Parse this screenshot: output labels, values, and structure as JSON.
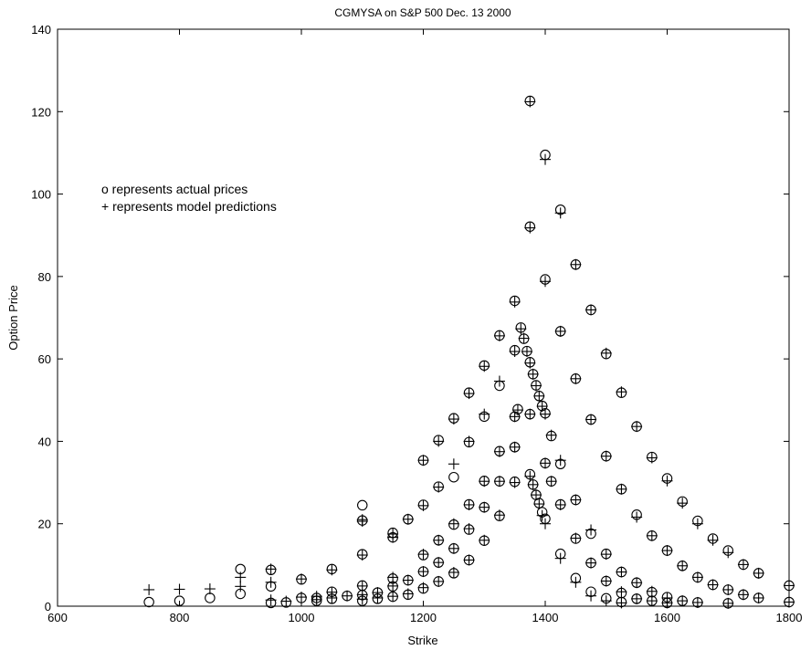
{
  "chart_data": {
    "type": "scatter",
    "title": "CGMYSA on S&P 500 Dec. 13 2000",
    "xlabel": "Strike",
    "ylabel": "Option Price",
    "xlim": [
      600,
      1800
    ],
    "ylim": [
      0,
      140
    ],
    "xticks": [
      600,
      800,
      1000,
      1200,
      1400,
      1600,
      1800
    ],
    "yticks": [
      0,
      20,
      40,
      60,
      80,
      100,
      120,
      140
    ],
    "grid": false,
    "legend": {
      "placement": "upper-left",
      "lines": [
        "o represents actual prices",
        "+ represents model predictions"
      ]
    },
    "series": [
      {
        "name": "actual prices",
        "marker": "o",
        "points": [
          [
            750,
            1.0
          ],
          [
            800,
            1.3
          ],
          [
            850,
            2.0
          ],
          [
            900,
            9.0
          ],
          [
            900,
            3.0
          ],
          [
            950,
            8.8
          ],
          [
            950,
            4.8
          ],
          [
            950,
            0.8
          ],
          [
            975,
            0.9
          ],
          [
            1000,
            6.5
          ],
          [
            1000,
            2.0
          ],
          [
            1025,
            2.0
          ],
          [
            1025,
            1.3
          ],
          [
            1050,
            9.0
          ],
          [
            1050,
            3.5
          ],
          [
            1050,
            1.8
          ],
          [
            1075,
            2.5
          ],
          [
            1100,
            24.5
          ],
          [
            1100,
            20.8
          ],
          [
            1100,
            12.6
          ],
          [
            1100,
            5.0
          ],
          [
            1100,
            2.7
          ],
          [
            1100,
            1.3
          ],
          [
            1125,
            3.3
          ],
          [
            1125,
            1.8
          ],
          [
            1150,
            17.8
          ],
          [
            1150,
            16.7
          ],
          [
            1150,
            6.7
          ],
          [
            1150,
            4.8
          ],
          [
            1150,
            2.3
          ],
          [
            1175,
            21.1
          ],
          [
            1175,
            6.3
          ],
          [
            1175,
            2.8
          ],
          [
            1200,
            35.4
          ],
          [
            1200,
            24.6
          ],
          [
            1200,
            12.4
          ],
          [
            1200,
            8.4
          ],
          [
            1200,
            4.3
          ],
          [
            1225,
            40.3
          ],
          [
            1225,
            29.0
          ],
          [
            1225,
            16.0
          ],
          [
            1225,
            10.6
          ],
          [
            1225,
            6.0
          ],
          [
            1250,
            45.6
          ],
          [
            1250,
            31.3
          ],
          [
            1250,
            19.8
          ],
          [
            1250,
            14.0
          ],
          [
            1250,
            8.0
          ],
          [
            1275,
            51.8
          ],
          [
            1275,
            39.8
          ],
          [
            1275,
            24.7
          ],
          [
            1275,
            18.6
          ],
          [
            1275,
            11.2
          ],
          [
            1300,
            58.4
          ],
          [
            1300,
            46.0
          ],
          [
            1300,
            30.4
          ],
          [
            1300,
            24.0
          ],
          [
            1300,
            15.9
          ],
          [
            1325,
            65.7
          ],
          [
            1325,
            53.5
          ],
          [
            1325,
            37.6
          ],
          [
            1325,
            30.3
          ],
          [
            1325,
            21.9
          ],
          [
            1350,
            74.1
          ],
          [
            1350,
            62.1
          ],
          [
            1350,
            46.0
          ],
          [
            1350,
            38.6
          ],
          [
            1350,
            30.2
          ],
          [
            1355,
            47.8
          ],
          [
            1360,
            67.6
          ],
          [
            1365,
            64.9
          ],
          [
            1370,
            61.9
          ],
          [
            1375,
            122.6
          ],
          [
            1375,
            92.1
          ],
          [
            1375,
            59.2
          ],
          [
            1375,
            46.6
          ],
          [
            1375,
            32.0
          ],
          [
            1380,
            56.3
          ],
          [
            1380,
            29.5
          ],
          [
            1385,
            53.6
          ],
          [
            1385,
            27.0
          ],
          [
            1390,
            51.0
          ],
          [
            1390,
            25.0
          ],
          [
            1395,
            48.6
          ],
          [
            1395,
            22.8
          ],
          [
            1400,
            109.5
          ],
          [
            1400,
            79.3
          ],
          [
            1400,
            46.8
          ],
          [
            1400,
            34.7
          ],
          [
            1400,
            21.2
          ],
          [
            1410,
            41.3
          ],
          [
            1410,
            30.3
          ],
          [
            1425,
            96.2
          ],
          [
            1425,
            66.7
          ],
          [
            1425,
            34.5
          ],
          [
            1425,
            24.7
          ],
          [
            1425,
            12.7
          ],
          [
            1450,
            82.9
          ],
          [
            1450,
            55.2
          ],
          [
            1450,
            25.8
          ],
          [
            1450,
            16.4
          ],
          [
            1450,
            6.8
          ],
          [
            1475,
            71.9
          ],
          [
            1475,
            45.3
          ],
          [
            1475,
            17.6
          ],
          [
            1475,
            10.5
          ],
          [
            1475,
            3.5
          ],
          [
            1500,
            61.2
          ],
          [
            1500,
            36.4
          ],
          [
            1500,
            12.7
          ],
          [
            1500,
            6.1
          ],
          [
            1500,
            1.9
          ],
          [
            1525,
            51.8
          ],
          [
            1525,
            28.4
          ],
          [
            1525,
            8.3
          ],
          [
            1525,
            3.2
          ],
          [
            1525,
            1.0
          ],
          [
            1550,
            43.6
          ],
          [
            1550,
            22.2
          ],
          [
            1550,
            5.7
          ],
          [
            1550,
            1.8
          ],
          [
            1575,
            36.2
          ],
          [
            1575,
            17.1
          ],
          [
            1575,
            3.4
          ],
          [
            1575,
            1.3
          ],
          [
            1600,
            31.0
          ],
          [
            1600,
            13.5
          ],
          [
            1600,
            2.2
          ],
          [
            1600,
            0.8
          ],
          [
            1625,
            25.4
          ],
          [
            1625,
            9.8
          ],
          [
            1625,
            1.3
          ],
          [
            1650,
            20.7
          ],
          [
            1650,
            7.0
          ],
          [
            1650,
            0.9
          ],
          [
            1675,
            16.4
          ],
          [
            1675,
            5.2
          ],
          [
            1700,
            13.5
          ],
          [
            1700,
            4.0
          ],
          [
            1700,
            0.7
          ],
          [
            1725,
            10.1
          ],
          [
            1725,
            2.8
          ],
          [
            1750,
            8.0
          ],
          [
            1750,
            2.0
          ],
          [
            1800,
            5.0
          ],
          [
            1800,
            1.0
          ]
        ]
      },
      {
        "name": "model predictions",
        "marker": "+",
        "points": [
          [
            750,
            4.0
          ],
          [
            800,
            4.1
          ],
          [
            850,
            4.2
          ],
          [
            900,
            7.0
          ],
          [
            900,
            4.8
          ],
          [
            950,
            9.0
          ],
          [
            950,
            5.8
          ],
          [
            950,
            1.5
          ],
          [
            975,
            1.2
          ],
          [
            1000,
            6.6
          ],
          [
            1000,
            2.2
          ],
          [
            1025,
            2.4
          ],
          [
            1025,
            1.6
          ],
          [
            1050,
            8.8
          ],
          [
            1050,
            3.4
          ],
          [
            1050,
            2.0
          ],
          [
            1075,
            2.5
          ],
          [
            1100,
            21.0
          ],
          [
            1100,
            20.6
          ],
          [
            1100,
            12.4
          ],
          [
            1100,
            4.9
          ],
          [
            1100,
            2.8
          ],
          [
            1100,
            1.7
          ],
          [
            1125,
            3.3
          ],
          [
            1125,
            2.0
          ],
          [
            1150,
            17.5
          ],
          [
            1150,
            16.7
          ],
          [
            1150,
            7.0
          ],
          [
            1150,
            4.9
          ],
          [
            1150,
            2.4
          ],
          [
            1175,
            21.1
          ],
          [
            1175,
            6.3
          ],
          [
            1175,
            3.0
          ],
          [
            1200,
            35.4
          ],
          [
            1200,
            24.4
          ],
          [
            1200,
            12.6
          ],
          [
            1200,
            8.4
          ],
          [
            1200,
            4.5
          ],
          [
            1225,
            40.0
          ],
          [
            1225,
            28.9
          ],
          [
            1225,
            16.0
          ],
          [
            1225,
            10.6
          ],
          [
            1225,
            6.0
          ],
          [
            1250,
            45.4
          ],
          [
            1250,
            34.5
          ],
          [
            1250,
            20.0
          ],
          [
            1250,
            14.0
          ],
          [
            1250,
            8.2
          ],
          [
            1275,
            51.6
          ],
          [
            1275,
            40.0
          ],
          [
            1275,
            24.6
          ],
          [
            1275,
            18.8
          ],
          [
            1275,
            11.2
          ],
          [
            1300,
            58.2
          ],
          [
            1300,
            46.6
          ],
          [
            1300,
            30.3
          ],
          [
            1300,
            24.0
          ],
          [
            1300,
            16.0
          ],
          [
            1325,
            65.6
          ],
          [
            1325,
            54.6
          ],
          [
            1325,
            37.5
          ],
          [
            1325,
            30.3
          ],
          [
            1325,
            22.1
          ],
          [
            1350,
            73.8
          ],
          [
            1350,
            61.8
          ],
          [
            1350,
            46.0
          ],
          [
            1350,
            38.6
          ],
          [
            1350,
            30.0
          ],
          [
            1355,
            47.6
          ],
          [
            1360,
            67.3
          ],
          [
            1365,
            65.0
          ],
          [
            1370,
            61.8
          ],
          [
            1375,
            122.4
          ],
          [
            1375,
            91.8
          ],
          [
            1375,
            59.0
          ],
          [
            1375,
            46.6
          ],
          [
            1375,
            31.5
          ],
          [
            1380,
            56.3
          ],
          [
            1380,
            29.5
          ],
          [
            1385,
            53.5
          ],
          [
            1385,
            27.0
          ],
          [
            1390,
            51.0
          ],
          [
            1390,
            24.8
          ],
          [
            1395,
            48.5
          ],
          [
            1395,
            22.0
          ],
          [
            1400,
            108.4
          ],
          [
            1400,
            78.8
          ],
          [
            1400,
            46.6
          ],
          [
            1400,
            34.7
          ],
          [
            1400,
            20.0
          ],
          [
            1410,
            41.5
          ],
          [
            1410,
            30.3
          ],
          [
            1425,
            95.4
          ],
          [
            1425,
            66.7
          ],
          [
            1425,
            35.4
          ],
          [
            1425,
            24.6
          ],
          [
            1425,
            11.6
          ],
          [
            1450,
            82.9
          ],
          [
            1450,
            55.2
          ],
          [
            1450,
            25.8
          ],
          [
            1450,
            16.5
          ],
          [
            1450,
            5.8
          ],
          [
            1475,
            71.9
          ],
          [
            1475,
            45.3
          ],
          [
            1475,
            18.5
          ],
          [
            1475,
            10.5
          ],
          [
            1475,
            2.5
          ],
          [
            1500,
            61.4
          ],
          [
            1500,
            36.4
          ],
          [
            1500,
            12.6
          ],
          [
            1500,
            6.1
          ],
          [
            1500,
            1.3
          ],
          [
            1525,
            52.0
          ],
          [
            1525,
            28.4
          ],
          [
            1525,
            8.3
          ],
          [
            1525,
            3.5
          ],
          [
            1525,
            0.8
          ],
          [
            1550,
            43.6
          ],
          [
            1550,
            21.6
          ],
          [
            1550,
            5.7
          ],
          [
            1550,
            1.8
          ],
          [
            1575,
            36.0
          ],
          [
            1575,
            17.1
          ],
          [
            1575,
            3.6
          ],
          [
            1575,
            1.3
          ],
          [
            1600,
            30.4
          ],
          [
            1600,
            13.5
          ],
          [
            1600,
            2.0
          ],
          [
            1600,
            0.8
          ],
          [
            1625,
            25.0
          ],
          [
            1625,
            9.8
          ],
          [
            1625,
            1.3
          ],
          [
            1650,
            20.0
          ],
          [
            1650,
            7.0
          ],
          [
            1650,
            0.9
          ],
          [
            1675,
            16.0
          ],
          [
            1675,
            5.2
          ],
          [
            1700,
            13.0
          ],
          [
            1700,
            4.0
          ],
          [
            1700,
            0.7
          ],
          [
            1725,
            10.1
          ],
          [
            1725,
            2.8
          ],
          [
            1750,
            8.0
          ],
          [
            1750,
            2.0
          ],
          [
            1800,
            5.0
          ],
          [
            1800,
            1.0
          ]
        ]
      }
    ]
  }
}
